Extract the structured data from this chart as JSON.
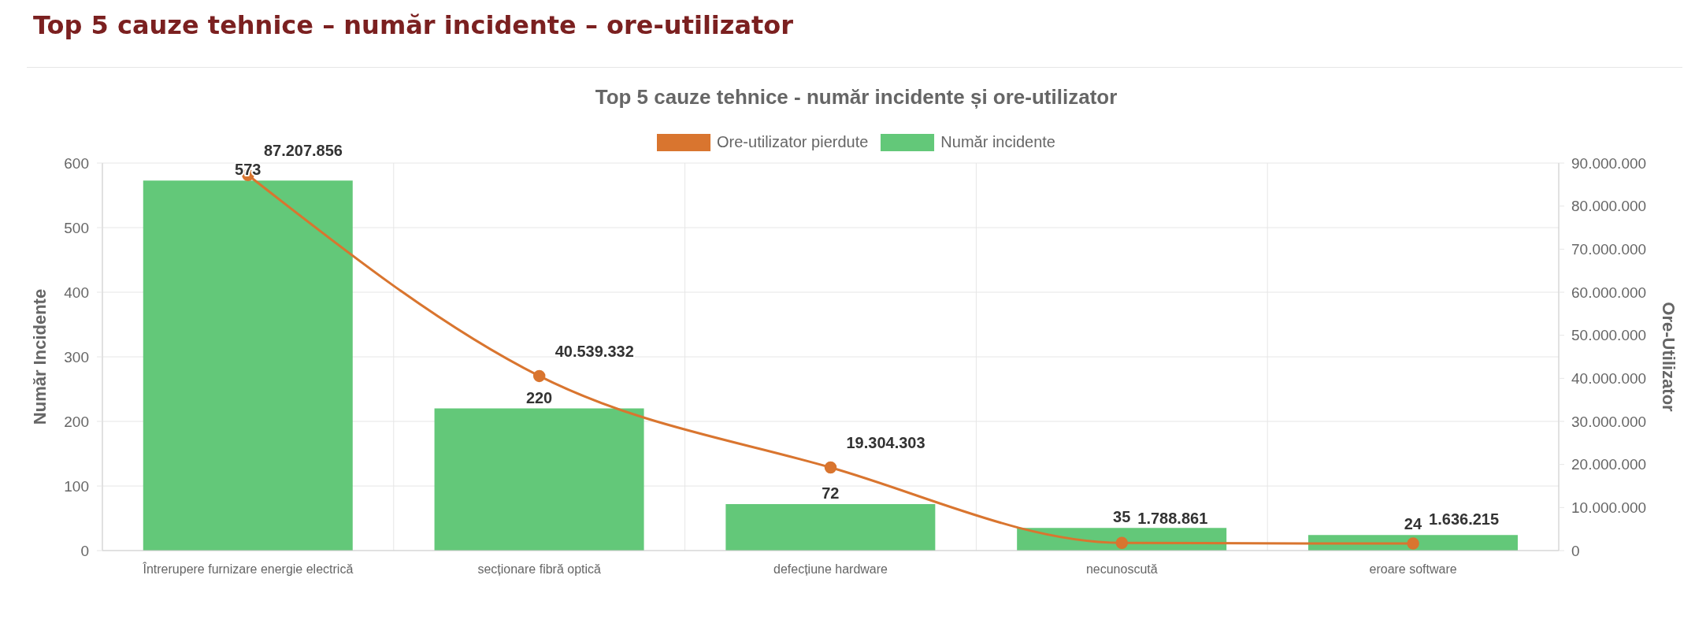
{
  "chart_data": {
    "type": "bar",
    "title": "Top 5 cauze tehnice – număr incidente – ore-utilizator",
    "subtitle": "Top 5 cauze tehnice - număr incidente și ore-utilizator",
    "categories": [
      "Întrerupere furnizare energie electrică",
      "secționare fibră optică",
      "defecțiune hardware",
      "necunoscută",
      "eroare software"
    ],
    "series": [
      {
        "name": "Ore-utilizator pierdute",
        "type": "line",
        "axis": "y2",
        "color": "#d9752f",
        "marker": "circle",
        "values": [
          87207856,
          40539332,
          19304303,
          1788861,
          1636215
        ],
        "value_labels": [
          "87.207.856",
          "40.539.332",
          "19.304.303",
          "1.788.861",
          "1.636.215"
        ]
      },
      {
        "name": "Număr incidente",
        "color": "#63c879",
        "values": [
          573,
          220,
          72,
          35,
          24
        ],
        "value_labels": [
          "573",
          "220",
          "72",
          "35",
          "24"
        ]
      }
    ],
    "ylabel": "Număr Incidente",
    "y2label": "Ore-Utilizator",
    "ylim": [
      0,
      600
    ],
    "yticks": [
      0,
      100,
      200,
      300,
      400,
      500,
      600
    ],
    "y2lim": [
      0,
      90000000
    ],
    "y2ticks": [
      0,
      {
        "value": 10000000,
        "label": "10.000.000"
      },
      {
        "value": 20000000,
        "label": "20.000.000"
      },
      {
        "value": 30000000,
        "label": "30.000.000"
      },
      {
        "value": 40000000,
        "label": "40.000.000"
      },
      {
        "value": 50000000,
        "label": "50.000.000"
      },
      {
        "value": 60000000,
        "label": "60.000.000"
      },
      {
        "value": 70000000,
        "label": "70.000.000"
      },
      {
        "value": 80000000,
        "label": "80.000.000"
      },
      {
        "value": 90000000,
        "label": "90.000.000"
      }
    ],
    "grid": true,
    "legend": "top"
  }
}
